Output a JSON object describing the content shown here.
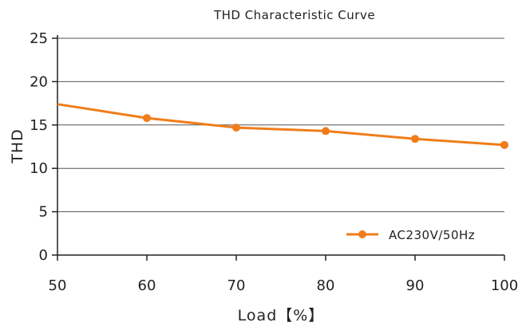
{
  "chart_data": {
    "type": "line",
    "title": "THD Characteristic Curve",
    "xlabel": "Load【%】",
    "ylabel": "THD",
    "xlim": [
      50,
      100
    ],
    "ylim": [
      0,
      25
    ],
    "x_ticks": [
      50,
      60,
      70,
      80,
      90,
      100
    ],
    "y_ticks": [
      0,
      5,
      10,
      15,
      20,
      25
    ],
    "grid": "horizontal",
    "legend_position": "bottom-right",
    "series": [
      {
        "name": "AC230V/50Hz",
        "color": "#f07d1a",
        "x": [
          50,
          60,
          70,
          80,
          90,
          100
        ],
        "y": [
          17.4,
          15.8,
          14.7,
          14.3,
          13.4,
          12.7
        ],
        "markers_at": [
          60,
          70,
          80,
          90,
          100
        ]
      }
    ]
  }
}
